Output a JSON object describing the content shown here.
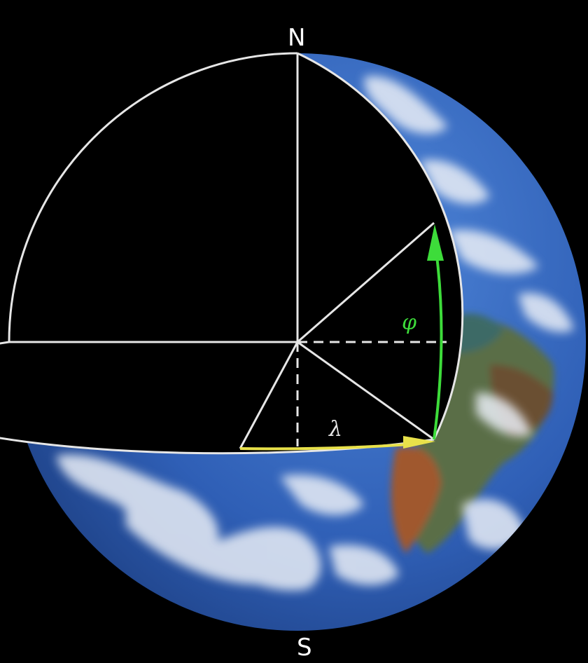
{
  "labels": {
    "north": "N",
    "south": "S",
    "latitude_symbol": "φ",
    "longitude_symbol": "λ"
  },
  "colors": {
    "background": "#000000",
    "line": "#e6e6e6",
    "latitude_arc": "#3ddc3a",
    "longitude_arc": "#e8e14a",
    "ocean": "#2f5fb6",
    "cloud": "#e9eef6",
    "land": "#8a5a35"
  },
  "icons": {
    "latitude_arrow": "arrow-up-icon",
    "longitude_arrow": "arrow-right-icon"
  }
}
